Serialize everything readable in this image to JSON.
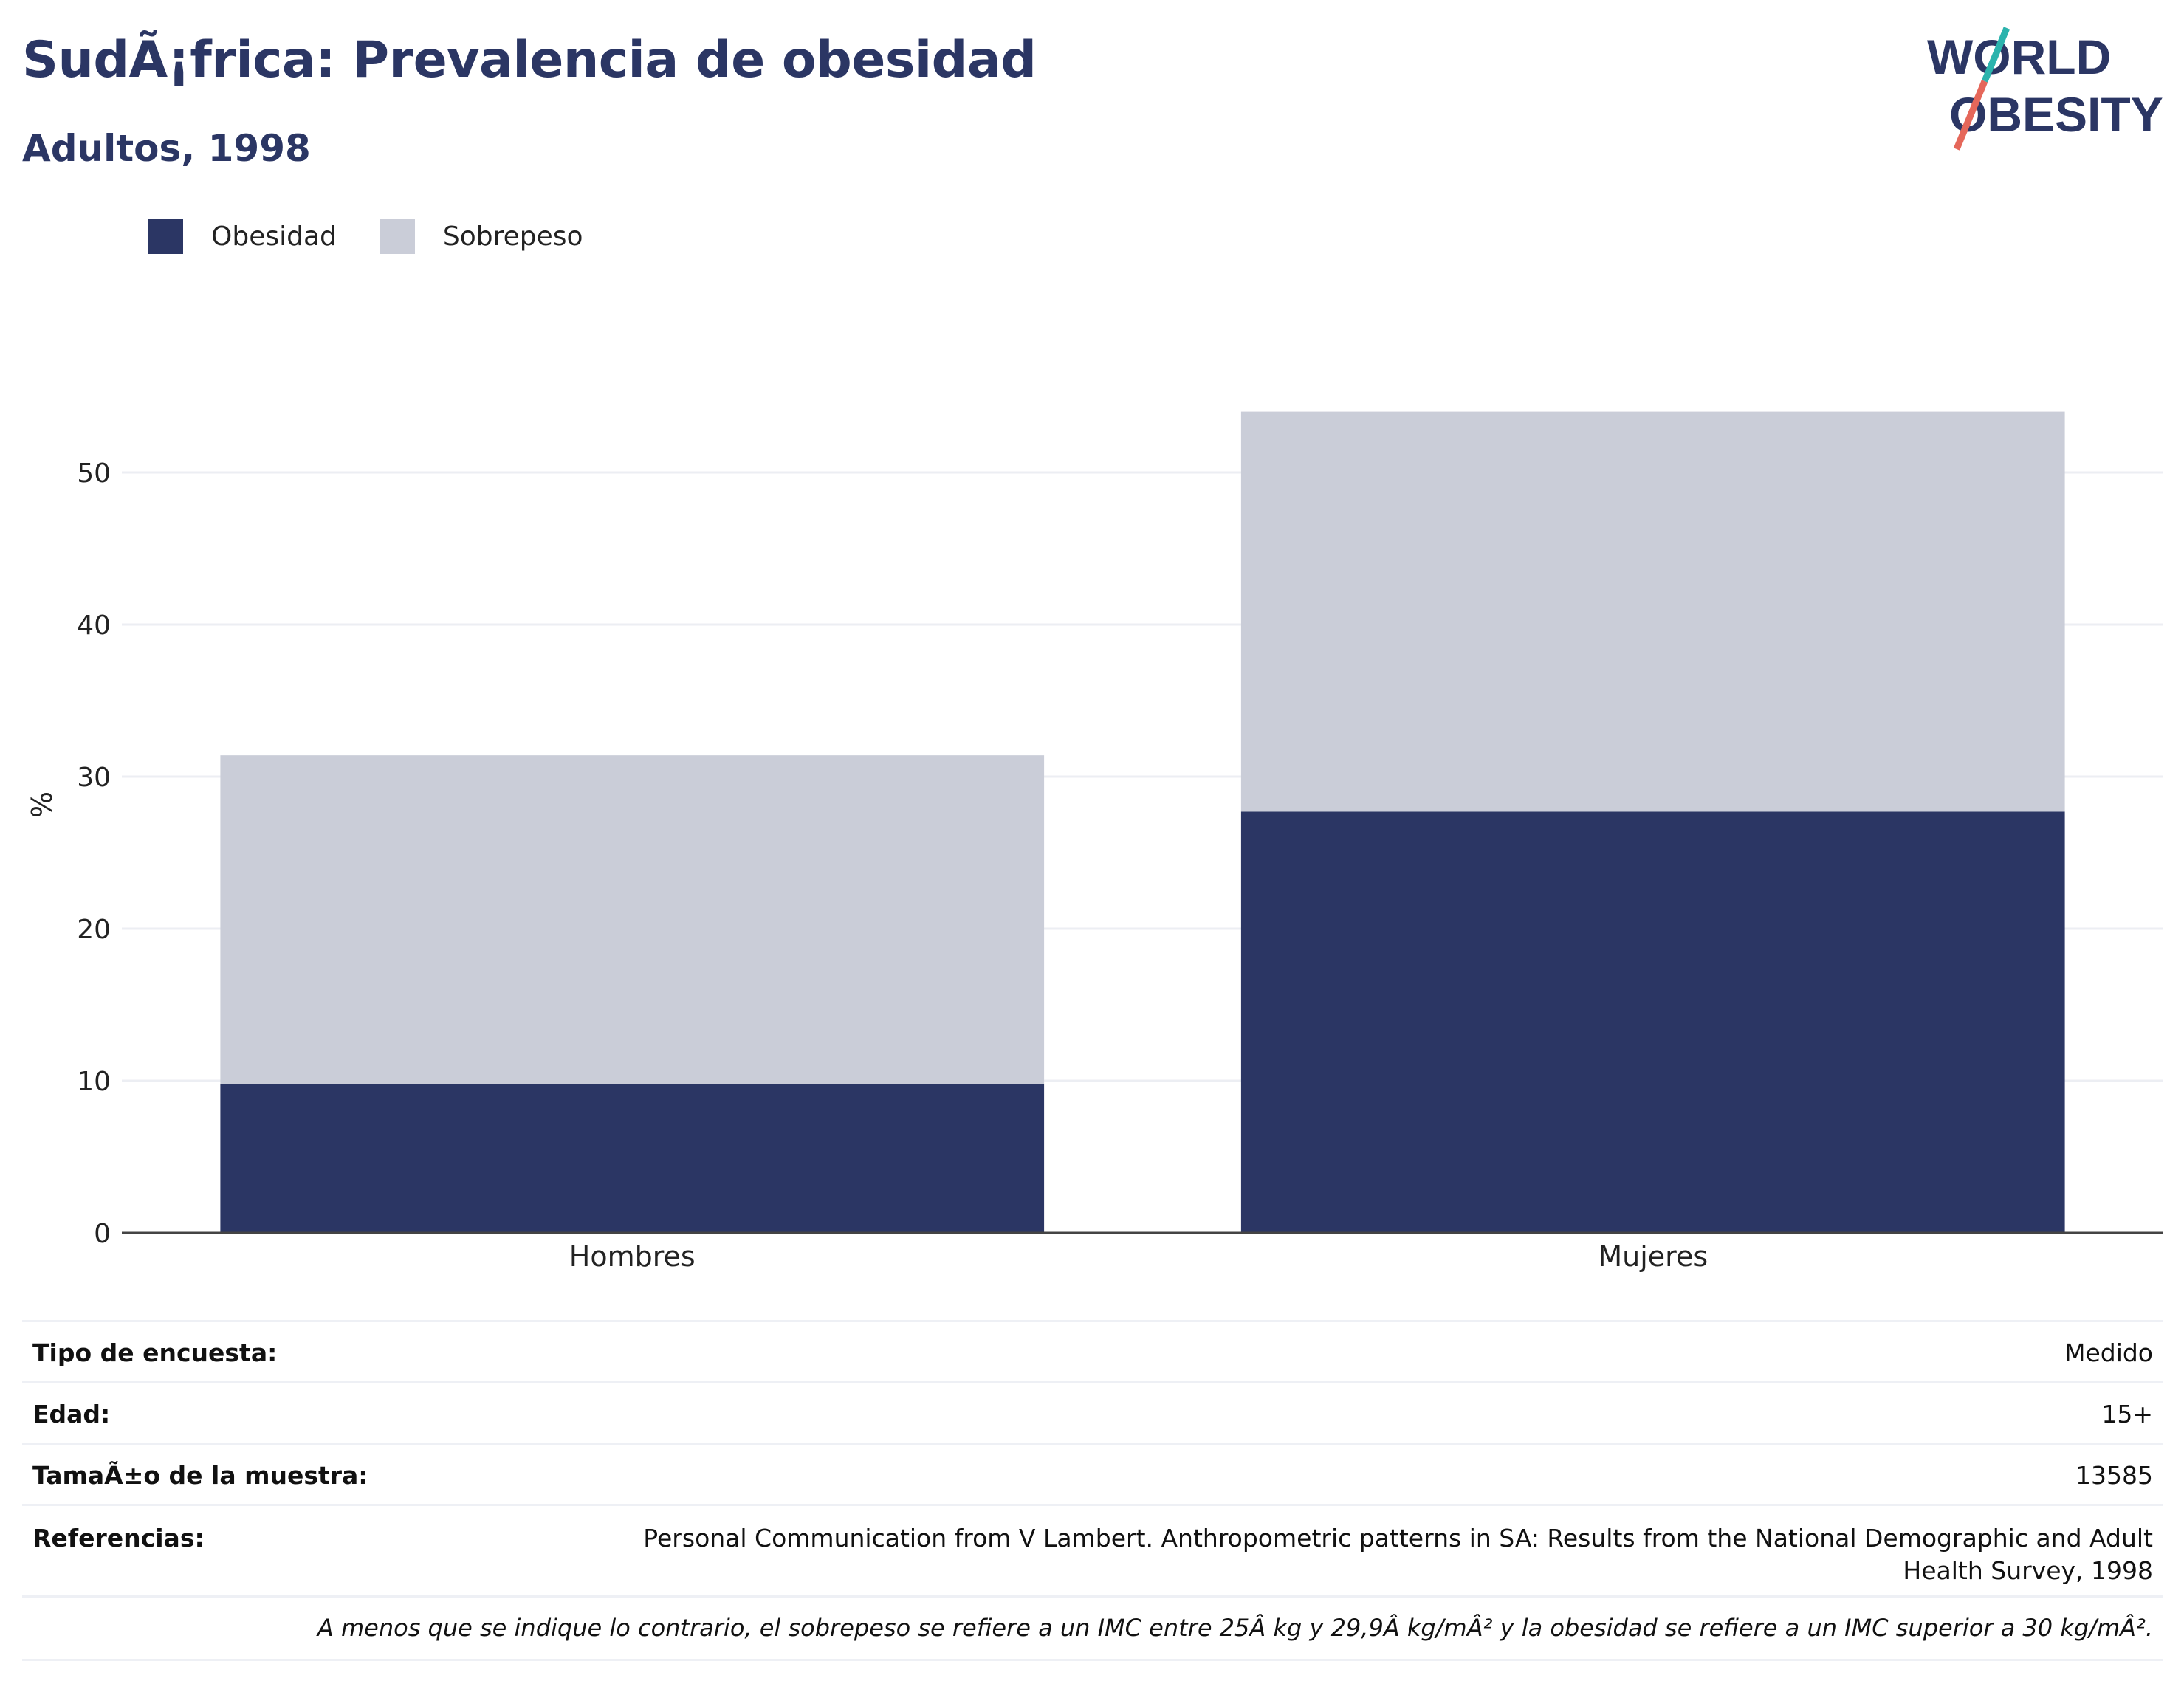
{
  "header": {
    "title": "SudÃ¡frica: Prevalencia de obesidad",
    "subtitle": "Adultos, 1998"
  },
  "logo": {
    "line1": "WORLD",
    "line2": "OBESITY",
    "colors": {
      "text": "#2b3664",
      "slash_top": "#2bb3ad",
      "slash_bottom": "#e5675a"
    }
  },
  "legend": {
    "items": [
      {
        "label": "Obesidad",
        "color": "#2b3664"
      },
      {
        "label": "Sobrepeso",
        "color": "#cacdd8"
      }
    ],
    "placement": "top-left"
  },
  "chart_data": {
    "type": "bar",
    "stacked": true,
    "categories": [
      "Hombres",
      "Mujeres"
    ],
    "series": [
      {
        "name": "Obesidad",
        "values": [
          9.8,
          27.7
        ],
        "color": "#2b3664"
      },
      {
        "name": "Sobrepeso",
        "values": [
          21.6,
          26.3
        ],
        "color": "#cacdd8"
      }
    ],
    "ylabel": "%",
    "xlabel": "",
    "ylim": [
      0,
      58
    ],
    "yticks": [
      0,
      10,
      20,
      30,
      40,
      50
    ],
    "grid": true
  },
  "info": {
    "rows": [
      {
        "label": "Tipo de encuesta:",
        "value": "Medido"
      },
      {
        "label": "Edad:",
        "value": "15+"
      },
      {
        "label": "TamaÃ±o de la muestra:",
        "value": "13585"
      },
      {
        "label": "Referencias:",
        "value": "Personal Communication from V Lambert. Anthropometric patterns in SA: Results from the National Demographic and Adult Health Survey, 1998"
      }
    ],
    "note": "A menos que se indique lo contrario, el sobrepeso se refiere a un IMC entre 25Â kg y 29,9Â kg/mÂ² y la obesidad se refiere a un IMC superior a 30 kg/mÂ²."
  }
}
